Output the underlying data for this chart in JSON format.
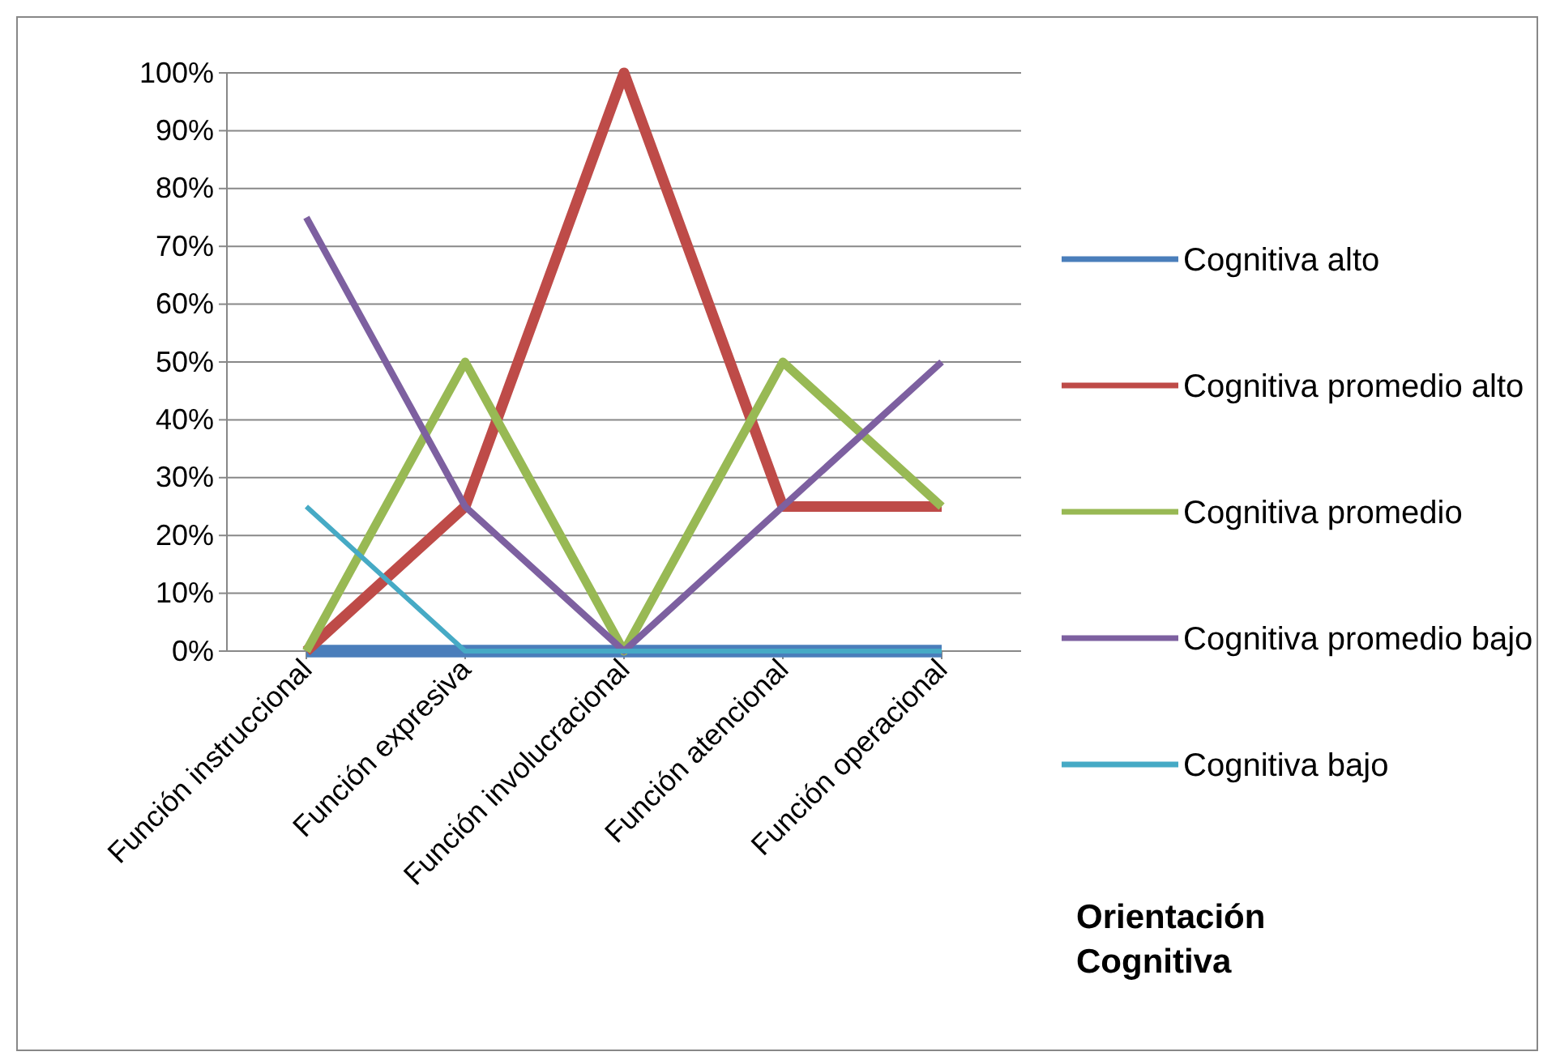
{
  "chart_data": {
    "type": "line",
    "categories": [
      "Función instruccional",
      "Función expresiva",
      "Función involucracional",
      "Función atencional",
      "Función operacional"
    ],
    "series": [
      {
        "name": "Cognitiva alto",
        "color": "#4a7ebb",
        "values": [
          0,
          0,
          0,
          0,
          0
        ]
      },
      {
        "name": "Cognitiva promedio alto",
        "color": "#be4b48",
        "values": [
          0,
          25,
          100,
          25,
          25
        ]
      },
      {
        "name": "Cognitiva promedio",
        "color": "#98b954",
        "values": [
          0,
          50,
          0,
          50,
          25
        ]
      },
      {
        "name": "Cognitiva promedio bajo",
        "color": "#7d60a0",
        "values": [
          75,
          25,
          0,
          25,
          50
        ]
      },
      {
        "name": "Cognitiva bajo",
        "color": "#46aac5",
        "values": [
          25,
          0,
          0,
          0,
          0
        ]
      }
    ],
    "ylim": [
      0,
      100
    ],
    "yticks": [
      {
        "value": 0,
        "label": "0%"
      },
      {
        "value": 10,
        "label": "10%"
      },
      {
        "value": 20,
        "label": "20%"
      },
      {
        "value": 30,
        "label": "30%"
      },
      {
        "value": 40,
        "label": "40%"
      },
      {
        "value": 50,
        "label": "50%"
      },
      {
        "value": 60,
        "label": "60%"
      },
      {
        "value": 70,
        "label": "70%"
      },
      {
        "value": 80,
        "label": "80%"
      },
      {
        "value": 90,
        "label": "90%"
      },
      {
        "value": 100,
        "label": "100%"
      }
    ],
    "grid": "y",
    "legend": "right",
    "marker": "none",
    "line_style": "solid",
    "annotations": [
      "Orientación Cognitiva"
    ]
  }
}
